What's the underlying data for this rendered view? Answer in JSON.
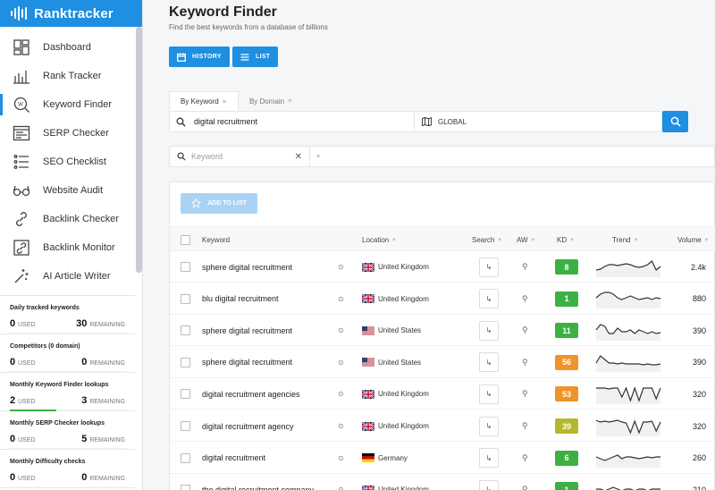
{
  "app": {
    "name": "Ranktracker"
  },
  "sidebar": {
    "items": [
      {
        "label": "Dashboard",
        "icon": "dashboard-icon",
        "active": false
      },
      {
        "label": "Rank Tracker",
        "icon": "bar-chart-icon",
        "active": false
      },
      {
        "label": "Keyword Finder",
        "icon": "keyword-search-icon",
        "active": true
      },
      {
        "label": "SERP Checker",
        "icon": "serp-icon",
        "active": false
      },
      {
        "label": "SEO Checklist",
        "icon": "checklist-icon",
        "active": false
      },
      {
        "label": "Website Audit",
        "icon": "glasses-icon",
        "active": false
      },
      {
        "label": "Backlink Checker",
        "icon": "link-icon",
        "active": false
      },
      {
        "label": "Backlink Monitor",
        "icon": "backlink-monitor-icon",
        "active": false
      },
      {
        "label": "AI Article Writer",
        "icon": "magic-wand-icon",
        "active": false
      }
    ],
    "quotas": [
      {
        "title": "Daily tracked keywords",
        "used": "0",
        "used_label": "USED",
        "remaining": "30",
        "remaining_label": "REMAINING",
        "fill": 0
      },
      {
        "title": "Competitors (0 domain)",
        "used": "0",
        "used_label": "USED",
        "remaining": "0",
        "remaining_label": "REMAINING",
        "fill": 0
      },
      {
        "title": "Monthly Keyword Finder lookups",
        "used": "2",
        "used_label": "USED",
        "remaining": "3",
        "remaining_label": "REMAINING",
        "fill": 0.4
      },
      {
        "title": "Monthly SERP Checker lookups",
        "used": "0",
        "used_label": "USED",
        "remaining": "5",
        "remaining_label": "REMAINING",
        "fill": 0
      },
      {
        "title": "Monthly Difficulty checks",
        "used": "0",
        "used_label": "USED",
        "remaining": "0",
        "remaining_label": "REMAINING",
        "fill": 0
      }
    ]
  },
  "header": {
    "title": "Keyword Finder",
    "subtitle": "Find the best keywords from a database of billions",
    "history_label": "HISTORY",
    "list_label": "LIST"
  },
  "search": {
    "tabs": [
      {
        "label": "By Keyword",
        "active": true
      },
      {
        "label": "By Domain",
        "active": false
      }
    ],
    "query": "digital recruitment",
    "location": "GLOBAL"
  },
  "filter": {
    "placeholder": "Keyword",
    "clear": "✕"
  },
  "table": {
    "add_to_list": "ADD TO LIST",
    "columns": {
      "keyword": "Keyword",
      "location": "Location",
      "search": "Search",
      "aw": "AW",
      "kd": "KD",
      "trend": "Trend",
      "volume": "Volume"
    },
    "rows": [
      {
        "keyword": "sphere digital recruitment",
        "flag": "uk",
        "location": "United Kingdom",
        "kd": "8",
        "kd_color": "#3cb043",
        "trend": [
          3,
          3.5,
          5,
          6,
          6,
          5.5,
          6,
          6.5,
          6,
          5,
          4.5,
          5,
          6,
          8,
          3,
          5
        ],
        "volume": "2.4k"
      },
      {
        "keyword": "blu digital recruitment",
        "flag": "uk",
        "location": "United Kingdom",
        "kd": "1",
        "kd_color": "#3cb043",
        "trend": [
          5,
          7,
          8,
          8,
          7,
          5,
          4,
          5,
          6,
          5,
          4,
          4.5,
          5,
          4,
          5,
          4.5
        ],
        "volume": "880"
      },
      {
        "keyword": "sphere digital recruitment",
        "flag": "us",
        "location": "United States",
        "kd": "11",
        "kd_color": "#3cb043",
        "trend": [
          5,
          8,
          7,
          3,
          3,
          6,
          4,
          4,
          5,
          3,
          5,
          4,
          3,
          4,
          3,
          3.5
        ],
        "volume": "390"
      },
      {
        "keyword": "sphere digital recruitment",
        "flag": "us",
        "location": "United States",
        "kd": "56",
        "kd_color": "#f0932b",
        "trend": [
          4,
          8,
          6,
          4,
          4,
          3.5,
          4,
          3.5,
          3.5,
          3.5,
          3.5,
          3,
          3.5,
          3,
          3,
          3.5
        ],
        "volume": "390"
      },
      {
        "keyword": "digital recruitment agencies",
        "flag": "uk",
        "location": "United Kingdom",
        "kd": "53",
        "kd_color": "#f0932b",
        "trend": [
          8,
          8,
          8,
          7.5,
          8,
          8,
          3,
          8,
          1,
          8,
          1,
          8,
          8,
          8,
          2,
          8
        ],
        "volume": "320"
      },
      {
        "keyword": "digital recruitment agency",
        "flag": "uk",
        "location": "United Kingdom",
        "kd": "39",
        "kd_color": "#b5b82c",
        "trend": [
          8,
          7,
          7.5,
          7,
          7.5,
          8,
          7,
          6.5,
          1,
          7.5,
          1,
          7,
          7,
          7.5,
          2,
          7
        ],
        "volume": "320"
      },
      {
        "keyword": "digital recruitment",
        "flag": "de",
        "location": "Germany",
        "kd": "6",
        "kd_color": "#3cb043",
        "trend": [
          5,
          4,
          3,
          4,
          5,
          6,
          4,
          5,
          5,
          4.5,
          4,
          4.5,
          5,
          4.5,
          5,
          5
        ],
        "volume": "260"
      },
      {
        "keyword": "the digital recruitment company",
        "flag": "uk",
        "location": "United Kingdom",
        "kd": "1",
        "kd_color": "#3cb043",
        "trend": [
          5,
          5,
          4,
          5,
          6,
          5,
          4,
          5,
          5,
          4,
          5,
          5,
          4,
          5,
          5,
          5
        ],
        "volume": "210"
      }
    ]
  },
  "colors": {
    "accent": "#1e8fe1",
    "success": "#3cb043",
    "warning": "#f0932b"
  }
}
